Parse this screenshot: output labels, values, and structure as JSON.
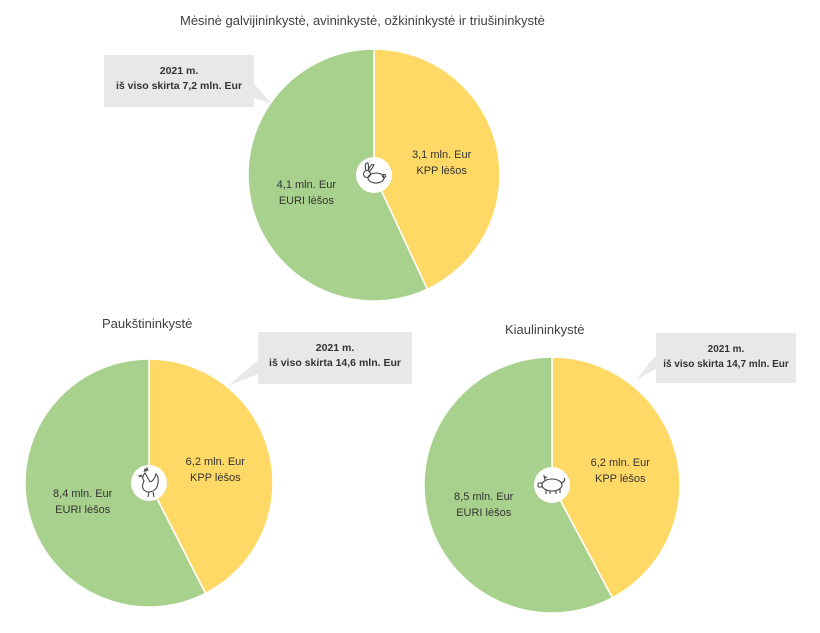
{
  "chart_data": [
    {
      "type": "pie",
      "title": "Mėsinė galvijininkystė, avininkystė, ožkininkystė ir triušininkystė",
      "icon": "rabbit-icon",
      "callout": {
        "year": "2021 m.",
        "total": "iš viso skirta 7,2 mln. Eur"
      },
      "slices": [
        {
          "value": 3.1,
          "amount_label": "3,1 mln. Eur",
          "source_label": "KPP lėšos",
          "color": "#ffd966"
        },
        {
          "value": 4.1,
          "amount_label": "4,1 mln. Eur",
          "source_label": "EURI lėšos",
          "color": "#a9d18e"
        }
      ]
    },
    {
      "type": "pie",
      "title": "Paukštininkystė",
      "icon": "rooster-icon",
      "callout": {
        "year": "2021 m.",
        "total": "iš viso skirta 14,6 mln. Eur"
      },
      "slices": [
        {
          "value": 6.2,
          "amount_label": "6,2 mln. Eur",
          "source_label": "KPP lėšos",
          "color": "#ffd966"
        },
        {
          "value": 8.4,
          "amount_label": "8,4 mln. Eur",
          "source_label": "EURI lėšos",
          "color": "#a9d18e"
        }
      ]
    },
    {
      "type": "pie",
      "title": "Kiaulininkystė",
      "icon": "pig-icon",
      "callout": {
        "year": "2021 m.",
        "total": "iš viso skirta 14,7 mln. Eur"
      },
      "slices": [
        {
          "value": 6.2,
          "amount_label": "6,2 mln. Eur",
          "source_label": "KPP lėšos",
          "color": "#ffd966"
        },
        {
          "value": 8.5,
          "amount_label": "8,5 mln. Eur",
          "source_label": "EURI lėšos",
          "color": "#a9d18e"
        }
      ]
    }
  ]
}
